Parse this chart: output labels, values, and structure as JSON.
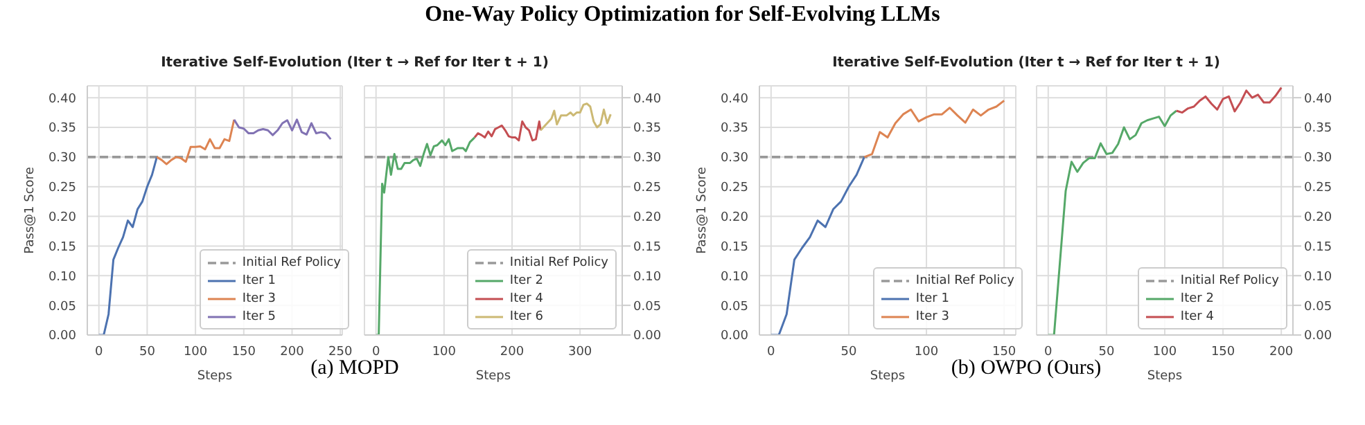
{
  "chart_data": [
    {
      "type": "line",
      "title": "Iterative Self-Evolution (Iter t → Ref for Iter t + 1)",
      "annotations": [
        "One-Way Policy Optimization for Self-Evolving LLMs",
        "(a) MOPD"
      ],
      "xlabel": "Steps",
      "ylabel": "Pass@1 Score",
      "xlim": [
        -12,
        252
      ],
      "xticks": [
        0,
        50,
        100,
        150,
        200,
        250
      ],
      "ylim": [
        0,
        0.42
      ],
      "yticks": [
        {
          "value": 0,
          "label": "0.00"
        },
        {
          "value": 0.05,
          "label": "0.05"
        },
        {
          "value": 0.1,
          "label": "0.10"
        },
        {
          "value": 0.15,
          "label": "0.15"
        },
        {
          "value": 0.2,
          "label": "0.20"
        },
        {
          "value": 0.25,
          "label": "0.25"
        },
        {
          "value": 0.3,
          "label": "0.30"
        },
        {
          "value": 0.35,
          "label": "0.35"
        },
        {
          "value": 0.4,
          "label": "0.40"
        }
      ],
      "grid": true,
      "legend": "bottom right",
      "ref_lines": [
        {
          "axis": "y",
          "value": 0.3,
          "label": "Initial Ref Policy",
          "color": "#999999",
          "line_style": "dashed"
        }
      ],
      "series": [
        {
          "name": "Iter 1",
          "color": "#4c72b0",
          "x": [
            0,
            5,
            10,
            15,
            20,
            25,
            30,
            35,
            40,
            45,
            50,
            55,
            60
          ],
          "values": [
            0,
            0,
            0.035,
            0.127,
            0.147,
            0.165,
            0.193,
            0.182,
            0.212,
            0.225,
            0.25,
            0.27,
            0.3
          ]
        },
        {
          "name": "Iter 3",
          "color": "#dd8452",
          "x": [
            60,
            65,
            70,
            75,
            80,
            85,
            90,
            95,
            100,
            105,
            110,
            115,
            120,
            125,
            130,
            135,
            140
          ],
          "values": [
            0.3,
            0.295,
            0.288,
            0.295,
            0.3,
            0.298,
            0.292,
            0.317,
            0.317,
            0.318,
            0.313,
            0.33,
            0.315,
            0.315,
            0.33,
            0.327,
            0.363
          ]
        },
        {
          "name": "Iter 5",
          "color": "#8172b3",
          "x": [
            140,
            145,
            150,
            155,
            160,
            165,
            170,
            175,
            180,
            185,
            190,
            195,
            200,
            205,
            210,
            215,
            220,
            225,
            230,
            235,
            240
          ],
          "values": [
            0.363,
            0.35,
            0.348,
            0.34,
            0.34,
            0.345,
            0.347,
            0.345,
            0.337,
            0.345,
            0.357,
            0.362,
            0.345,
            0.363,
            0.342,
            0.338,
            0.357,
            0.34,
            0.342,
            0.34,
            0.33
          ]
        }
      ]
    },
    {
      "type": "line",
      "xlabel": "Steps",
      "xlim": [
        -17,
        362
      ],
      "xticks": [
        0,
        100,
        200,
        300
      ],
      "y2lim": [
        0,
        0.42
      ],
      "y2ticks": [
        {
          "value": 0,
          "label": "0.00"
        },
        {
          "value": 0.05,
          "label": "0.05"
        },
        {
          "value": 0.1,
          "label": "0.10"
        },
        {
          "value": 0.15,
          "label": "0.15"
        },
        {
          "value": 0.2,
          "label": "0.20"
        },
        {
          "value": 0.25,
          "label": "0.25"
        },
        {
          "value": 0.3,
          "label": "0.30"
        },
        {
          "value": 0.35,
          "label": "0.35"
        },
        {
          "value": 0.4,
          "label": "0.40"
        }
      ],
      "grid": true,
      "legend": "bottom right",
      "ref_lines": [
        {
          "axis": "y2",
          "value": 0.3,
          "label": "Initial Ref Policy",
          "color": "#999999",
          "line_style": "dashed"
        }
      ],
      "series": [
        {
          "name": "Iter 2",
          "color": "#55a868",
          "axis": "y2",
          "x": [
            0,
            4,
            9,
            12,
            18,
            22,
            27,
            32,
            37,
            42,
            50,
            55,
            60,
            65,
            70,
            75,
            80,
            85,
            90,
            97,
            102,
            107,
            112,
            120,
            128,
            132,
            138,
            145
          ],
          "values": [
            0,
            0,
            0.255,
            0.24,
            0.3,
            0.27,
            0.305,
            0.28,
            0.28,
            0.29,
            0.29,
            0.295,
            0.297,
            0.285,
            0.305,
            0.322,
            0.303,
            0.318,
            0.32,
            0.328,
            0.32,
            0.33,
            0.31,
            0.315,
            0.315,
            0.31,
            0.325,
            0.333
          ]
        },
        {
          "name": "Iter 4",
          "color": "#c44e52",
          "axis": "y2",
          "x": [
            145,
            150,
            155,
            160,
            165,
            170,
            175,
            180,
            185,
            190,
            195,
            200,
            205,
            210,
            215,
            220,
            225,
            230,
            235,
            240,
            242
          ],
          "values": [
            0.333,
            0.34,
            0.337,
            0.333,
            0.343,
            0.335,
            0.347,
            0.35,
            0.353,
            0.345,
            0.335,
            0.333,
            0.333,
            0.328,
            0.36,
            0.35,
            0.345,
            0.328,
            0.33,
            0.36,
            0.345
          ]
        },
        {
          "name": "Iter 6",
          "color": "#ccb974",
          "axis": "y2",
          "x": [
            242,
            250,
            258,
            262,
            266,
            272,
            280,
            286,
            290,
            295,
            300,
            305,
            310,
            315,
            320,
            325,
            330,
            335,
            340,
            345
          ],
          "values": [
            0.345,
            0.355,
            0.365,
            0.378,
            0.355,
            0.37,
            0.37,
            0.375,
            0.37,
            0.375,
            0.375,
            0.388,
            0.39,
            0.385,
            0.36,
            0.35,
            0.355,
            0.38,
            0.357,
            0.372
          ]
        }
      ]
    },
    {
      "type": "line",
      "title": "Iterative Self-Evolution (Iter t → Ref for Iter t + 1)",
      "annotations": [
        "(b) OWPO (Ours)"
      ],
      "xlabel": "Steps",
      "ylabel": "Pass@1 Score",
      "xlim": [
        -7.5,
        157.5
      ],
      "xticks": [
        0,
        50,
        100,
        150
      ],
      "ylim": [
        0,
        0.42
      ],
      "yticks": [
        {
          "value": 0,
          "label": "0.00"
        },
        {
          "value": 0.05,
          "label": "0.05"
        },
        {
          "value": 0.1,
          "label": "0.10"
        },
        {
          "value": 0.15,
          "label": "0.15"
        },
        {
          "value": 0.2,
          "label": "0.20"
        },
        {
          "value": 0.25,
          "label": "0.25"
        },
        {
          "value": 0.3,
          "label": "0.30"
        },
        {
          "value": 0.35,
          "label": "0.35"
        },
        {
          "value": 0.4,
          "label": "0.40"
        }
      ],
      "grid": true,
      "legend": "bottom right",
      "ref_lines": [
        {
          "axis": "y",
          "value": 0.3,
          "label": "Initial Ref Policy",
          "color": "#999999",
          "line_style": "dashed"
        }
      ],
      "series": [
        {
          "name": "Iter 1",
          "color": "#4c72b0",
          "x": [
            0,
            5,
            10,
            15,
            20,
            25,
            30,
            35,
            40,
            45,
            50,
            55,
            60
          ],
          "values": [
            0,
            0,
            0.035,
            0.127,
            0.147,
            0.165,
            0.193,
            0.182,
            0.212,
            0.225,
            0.25,
            0.27,
            0.3
          ]
        },
        {
          "name": "Iter 3",
          "color": "#dd8452",
          "x": [
            60,
            65,
            70,
            75,
            80,
            85,
            90,
            95,
            100,
            105,
            110,
            115,
            120,
            125,
            130,
            135,
            140,
            145,
            150
          ],
          "values": [
            0.3,
            0.305,
            0.342,
            0.333,
            0.357,
            0.372,
            0.38,
            0.36,
            0.367,
            0.372,
            0.372,
            0.383,
            0.37,
            0.358,
            0.38,
            0.37,
            0.38,
            0.385,
            0.395
          ]
        }
      ]
    },
    {
      "type": "line",
      "xlabel": "Steps",
      "xlim": [
        -10,
        210
      ],
      "xticks": [
        0,
        50,
        100,
        150,
        200
      ],
      "y2lim": [
        0,
        0.42
      ],
      "y2ticks": [
        {
          "value": 0,
          "label": "0.00"
        },
        {
          "value": 0.05,
          "label": "0.05"
        },
        {
          "value": 0.1,
          "label": "0.10"
        },
        {
          "value": 0.15,
          "label": "0.15"
        },
        {
          "value": 0.2,
          "label": "0.20"
        },
        {
          "value": 0.25,
          "label": "0.25"
        },
        {
          "value": 0.3,
          "label": "0.30"
        },
        {
          "value": 0.35,
          "label": "0.35"
        },
        {
          "value": 0.4,
          "label": "0.40"
        }
      ],
      "grid": true,
      "legend": "bottom right",
      "ref_lines": [
        {
          "axis": "y2",
          "value": 0.3,
          "label": "Initial Ref Policy",
          "color": "#999999",
          "line_style": "dashed"
        }
      ],
      "series": [
        {
          "name": "Iter 2",
          "color": "#55a868",
          "axis": "y2",
          "x": [
            0,
            5,
            15,
            20,
            25,
            30,
            35,
            40,
            45,
            50,
            55,
            60,
            65,
            70,
            75,
            80,
            85,
            90,
            95,
            100,
            105,
            110
          ],
          "values": [
            0,
            0,
            0.243,
            0.292,
            0.275,
            0.29,
            0.298,
            0.298,
            0.323,
            0.305,
            0.307,
            0.322,
            0.35,
            0.33,
            0.337,
            0.357,
            0.362,
            0.365,
            0.368,
            0.352,
            0.37,
            0.378
          ]
        },
        {
          "name": "Iter 4",
          "color": "#c44e52",
          "axis": "y2",
          "x": [
            110,
            115,
            120,
            125,
            130,
            135,
            140,
            145,
            150,
            155,
            160,
            165,
            170,
            175,
            180,
            185,
            190,
            195,
            200
          ],
          "values": [
            0.378,
            0.375,
            0.382,
            0.385,
            0.395,
            0.402,
            0.39,
            0.38,
            0.398,
            0.402,
            0.377,
            0.392,
            0.412,
            0.4,
            0.405,
            0.392,
            0.392,
            0.403,
            0.417
          ]
        }
      ]
    }
  ]
}
